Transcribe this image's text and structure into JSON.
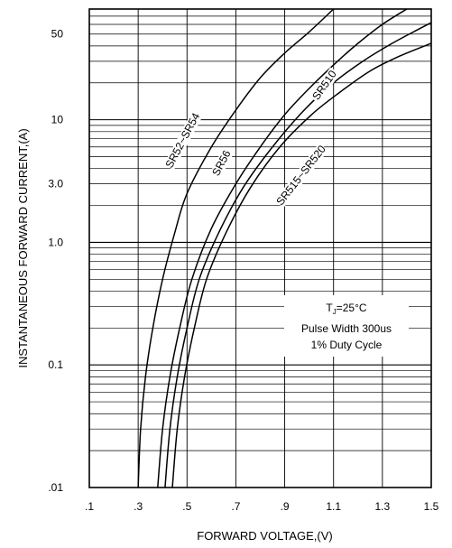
{
  "chart_data": {
    "type": "line",
    "xlabel": "FORWARD VOLTAGE,(V)",
    "ylabel": "INSTANTANEOUS FORWARD CURRENT,(A)",
    "xlim": [
      0.1,
      1.5
    ],
    "ylim": [
      0.01,
      80
    ],
    "yscale": "log",
    "grid": true,
    "x_ticks": [
      ".1",
      ".3",
      ".5",
      ".7",
      ".9",
      "1.1",
      "1.3",
      "1.5"
    ],
    "x_tick_values": [
      0.1,
      0.3,
      0.5,
      0.7,
      0.9,
      1.1,
      1.3,
      1.5
    ],
    "y_ticks": [
      ".01",
      "0.1",
      "1.0",
      "3.0",
      "10",
      "50"
    ],
    "y_tick_values": [
      0.01,
      0.1,
      1.0,
      3.0,
      10,
      50
    ],
    "series": [
      {
        "name": "SR52~SR54",
        "x": [
          0.3,
          0.31,
          0.33,
          0.36,
          0.4,
          0.45,
          0.5,
          0.6,
          0.7,
          0.8,
          0.9,
          1.0,
          1.1
        ],
        "y": [
          0.01,
          0.03,
          0.08,
          0.2,
          0.5,
          1.2,
          2.5,
          6.0,
          12,
          22,
          35,
          52,
          80
        ]
      },
      {
        "name": "SR56",
        "x": [
          0.38,
          0.4,
          0.43,
          0.47,
          0.52,
          0.6,
          0.7,
          0.8,
          0.9,
          1.0,
          1.1,
          1.2,
          1.3,
          1.4
        ],
        "y": [
          0.01,
          0.03,
          0.08,
          0.2,
          0.5,
          1.3,
          3.0,
          6.0,
          11,
          18,
          28,
          42,
          60,
          80
        ]
      },
      {
        "name": "SR510",
        "x": [
          0.41,
          0.43,
          0.46,
          0.5,
          0.55,
          0.63,
          0.73,
          0.85,
          0.98,
          1.1,
          1.22,
          1.34,
          1.45,
          1.5
        ],
        "y": [
          0.01,
          0.03,
          0.08,
          0.2,
          0.5,
          1.2,
          2.8,
          6.0,
          12,
          20,
          30,
          42,
          55,
          62
        ]
      },
      {
        "name": "SR515~SR520",
        "x": [
          0.44,
          0.46,
          0.49,
          0.53,
          0.58,
          0.66,
          0.76,
          0.88,
          1.01,
          1.13,
          1.25,
          1.37,
          1.5
        ],
        "y": [
          0.01,
          0.03,
          0.08,
          0.2,
          0.5,
          1.2,
          2.8,
          6.0,
          11,
          17,
          25,
          33,
          42
        ]
      }
    ],
    "curve_labels": [
      {
        "text": "SR52~SR54",
        "series": 0
      },
      {
        "text": "SR56",
        "series": 1
      },
      {
        "text": "SR510",
        "series": 2
      },
      {
        "text": "SR515~SR520",
        "series": 3
      }
    ],
    "annotation": {
      "line1_prefix": "T",
      "line1_sub": "J",
      "line1_suffix": "=25°C",
      "line2": "Pulse Width 300us",
      "line3": "1% Duty Cycle"
    }
  }
}
